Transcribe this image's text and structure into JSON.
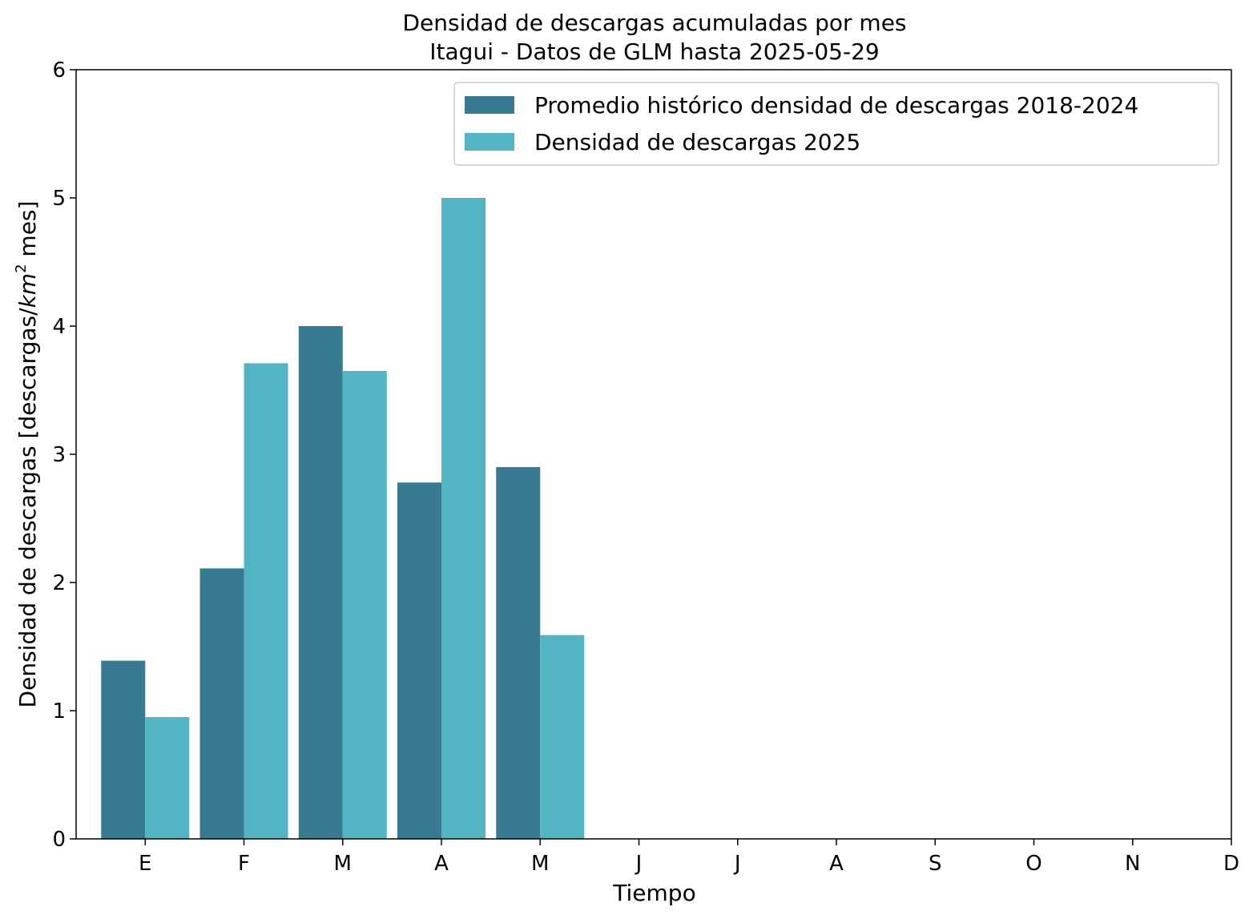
{
  "chart_data": {
    "type": "bar",
    "title": "Densidad de descargas acumuladas por mes",
    "subtitle": "Itagui - Datos de GLM hasta 2025-05-29",
    "xlabel": "Tiempo",
    "ylabel_main": "Densidad de descargas [descargas/",
    "ylabel_unit": "km",
    "ylabel_sup": "2",
    "ylabel_tail": " mes]",
    "categories": [
      "E",
      "F",
      "M",
      "A",
      "M",
      "J",
      "J",
      "A",
      "S",
      "O",
      "N",
      "D"
    ],
    "yticks": [
      0,
      1,
      2,
      3,
      4,
      5,
      6
    ],
    "ylim": [
      0,
      6
    ],
    "grid": false,
    "legend_position": "top-right",
    "series": [
      {
        "name": "Promedio histórico densidad de descargas 2018-2024",
        "color": "#377b93",
        "values": [
          1.39,
          2.11,
          4.0,
          2.78,
          2.9,
          null,
          null,
          null,
          null,
          null,
          null,
          null
        ]
      },
      {
        "name": "Densidad de descargas 2025",
        "color": "#52b5c4",
        "values": [
          0.95,
          3.71,
          3.65,
          5.0,
          1.59,
          null,
          null,
          null,
          null,
          null,
          null,
          null
        ]
      }
    ]
  }
}
